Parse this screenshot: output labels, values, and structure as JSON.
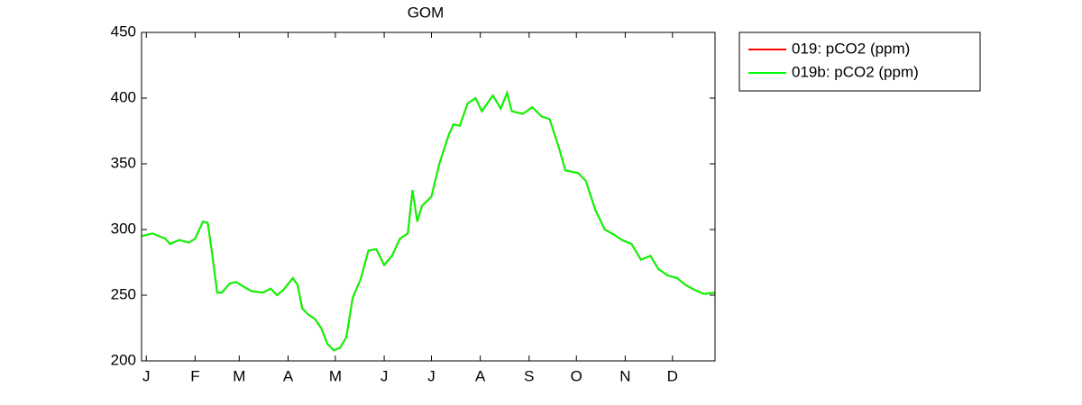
{
  "chart_data": {
    "type": "line",
    "title": "GOM",
    "x": [
      -2,
      5,
      13,
      16,
      22,
      28,
      32,
      37,
      40,
      43,
      46,
      49,
      54,
      58,
      62,
      68,
      75,
      80,
      84,
      88,
      94,
      97,
      100,
      104,
      108,
      112,
      116,
      120,
      124,
      128,
      132,
      137,
      142,
      147,
      152,
      157,
      162,
      167,
      170,
      173,
      176,
      182,
      187,
      193,
      196,
      200,
      205,
      210,
      214,
      221,
      226,
      230,
      233,
      240,
      246,
      252,
      257,
      263,
      267,
      275,
      280,
      286,
      292,
      298,
      303,
      309,
      315,
      321,
      326,
      332,
      338,
      343,
      349,
      355,
      362
    ],
    "series": [
      {
        "name": "019: pCO2 (ppm)",
        "color": "#ff0000",
        "values": [
          295,
          297,
          293,
          289,
          292,
          290,
          293,
          306,
          305,
          280,
          252,
          252,
          259,
          260,
          257,
          253,
          252,
          255,
          250,
          254,
          263,
          258,
          240,
          235,
          232,
          225,
          213,
          208,
          210,
          218,
          248,
          262,
          284,
          285,
          273,
          280,
          293,
          297,
          330,
          306,
          318,
          325,
          350,
          372,
          380,
          379,
          396,
          400,
          390,
          402,
          392,
          404,
          390,
          388,
          393,
          386,
          384,
          362,
          345,
          343,
          337,
          315,
          300,
          296,
          292,
          289,
          277,
          280,
          270,
          265,
          263,
          258,
          254,
          251,
          252
        ]
      },
      {
        "name": "019b: pCO2 (ppm)",
        "color": "#00ff00",
        "values": [
          295,
          297,
          293,
          289,
          292,
          290,
          293,
          306,
          305,
          280,
          252,
          252,
          259,
          260,
          257,
          253,
          252,
          255,
          250,
          254,
          263,
          258,
          240,
          235,
          232,
          225,
          213,
          208,
          210,
          218,
          248,
          262,
          284,
          285,
          273,
          280,
          293,
          297,
          330,
          306,
          318,
          325,
          350,
          372,
          380,
          379,
          396,
          400,
          390,
          402,
          392,
          404,
          390,
          388,
          393,
          386,
          384,
          362,
          345,
          343,
          337,
          315,
          300,
          296,
          292,
          289,
          277,
          280,
          270,
          265,
          263,
          258,
          254,
          251,
          252
        ]
      }
    ],
    "xlim": [
      -2,
      362
    ],
    "xticks": [
      {
        "value": 1,
        "label": "J"
      },
      {
        "value": 32,
        "label": "F"
      },
      {
        "value": 60,
        "label": "M"
      },
      {
        "value": 91,
        "label": "A"
      },
      {
        "value": 121,
        "label": "M"
      },
      {
        "value": 152,
        "label": "J"
      },
      {
        "value": 182,
        "label": "J"
      },
      {
        "value": 213,
        "label": "A"
      },
      {
        "value": 244,
        "label": "S"
      },
      {
        "value": 274,
        "label": "O"
      },
      {
        "value": 305,
        "label": "N"
      },
      {
        "value": 335,
        "label": "D"
      }
    ],
    "ylim": [
      200,
      450
    ],
    "yticks": [
      200,
      250,
      300,
      350,
      400,
      450
    ],
    "legend": "outside-top-right"
  }
}
